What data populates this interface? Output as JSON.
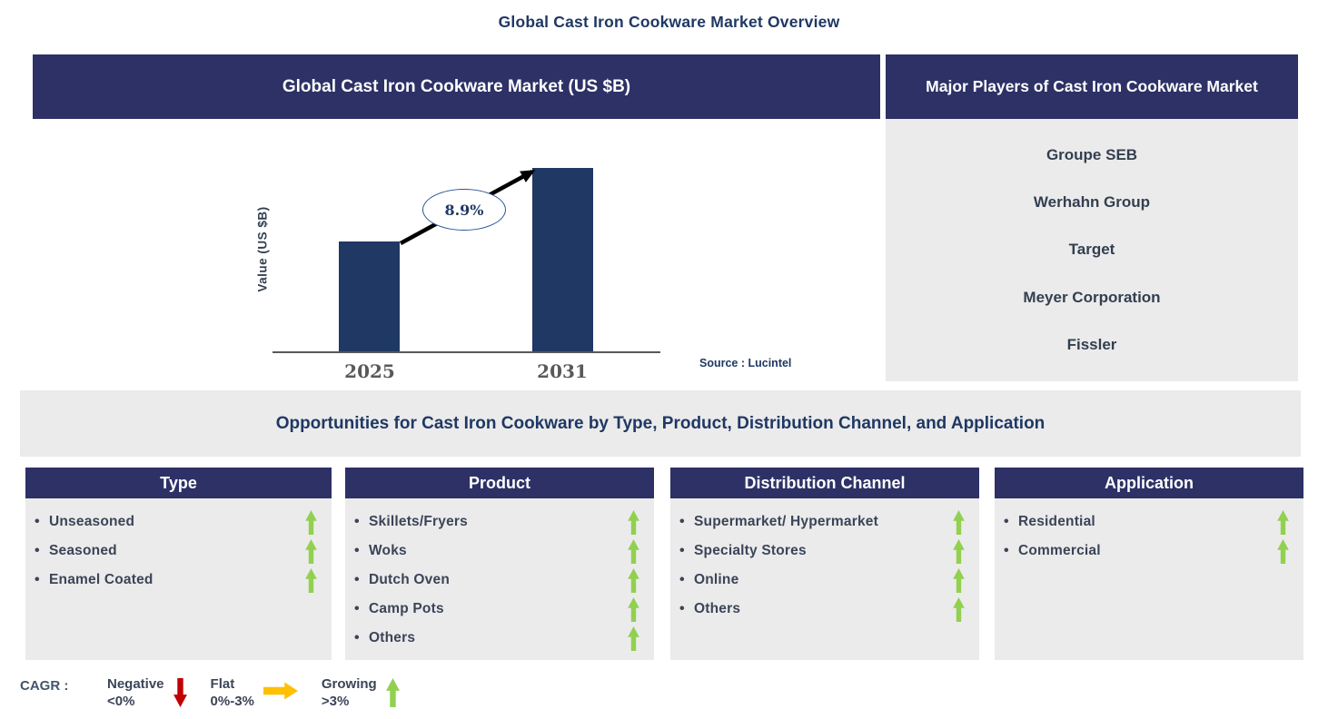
{
  "page_title": "Global Cast Iron Cookware Market Overview",
  "colors": {
    "navy_header": "#2D3166",
    "bar_navy": "#1F3864",
    "title_navy": "#1F3864",
    "panel_gray": "#EBEBEB",
    "item_text": "#3B4458",
    "axis_tick_gray": "#595959",
    "growing_green": "#92D050",
    "negative_red": "#C00000",
    "flat_yellow": "#FFC000"
  },
  "chart_panel": {
    "header": "Global Cast Iron Cookware Market (US $B)",
    "source": "Source : Lucintel"
  },
  "chart_data": {
    "type": "bar",
    "title": "Global Cast Iron Cookware Market (US $B)",
    "categories": [
      "2025",
      "2031"
    ],
    "relative_heights": [
      0.6,
      1.0
    ],
    "values_labeled": false,
    "cagr": "8.9%",
    "xlabel": "",
    "ylabel": "Value (US $B)",
    "grid": false,
    "legend_position": "none",
    "bar_color": "#1F3864",
    "annotation": "8.9% CAGR arrow from 2025 bar to 2031 bar"
  },
  "players_panel": {
    "header": "Major Players of Cast Iron Cookware Market",
    "players": [
      "Groupe SEB",
      "Werhahn Group",
      "Target",
      "Meyer Corporation",
      "Fissler"
    ]
  },
  "opportunities": {
    "title": "Opportunities for Cast Iron Cookware by Type, Product, Distribution Channel, and Application",
    "columns": [
      {
        "header": "Type",
        "items": [
          "Unseasoned",
          "Seasoned",
          "Enamel Coated"
        ],
        "trends": [
          "up",
          "up",
          "up"
        ]
      },
      {
        "header": "Product",
        "items": [
          "Skillets/Fryers",
          "Woks",
          "Dutch Oven",
          "Camp Pots",
          "Others"
        ],
        "trends": [
          "up",
          "up",
          "up",
          "up",
          "up"
        ]
      },
      {
        "header": "Distribution Channel",
        "items": [
          "Supermarket/ Hypermarket",
          "Specialty Stores",
          "Online",
          "Others"
        ],
        "trends": [
          "up",
          "up",
          "up",
          "up"
        ]
      },
      {
        "header": "Application",
        "items": [
          "Residential",
          "Commercial"
        ],
        "trends": [
          "up",
          "up"
        ]
      }
    ]
  },
  "legend": {
    "label": "CAGR :",
    "entries": [
      {
        "name": "Negative",
        "range": "<0%",
        "direction": "down",
        "color": "#C00000"
      },
      {
        "name": "Flat",
        "range": "0%-3%",
        "direction": "right",
        "color": "#FFC000"
      },
      {
        "name": "Growing",
        "range": ">3%",
        "direction": "up",
        "color": "#92D050"
      }
    ]
  }
}
